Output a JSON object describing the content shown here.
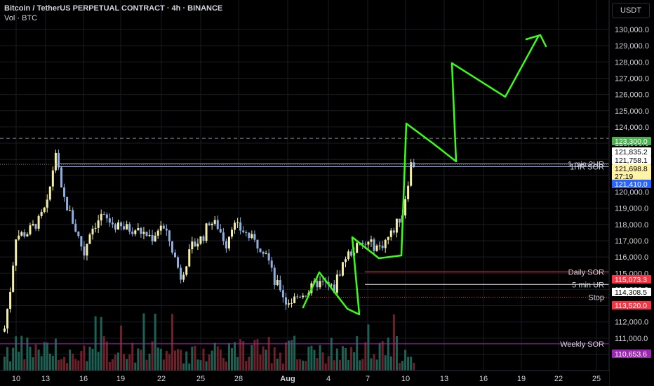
{
  "header": {
    "title": "Bitcoin / TetherUS PERPETUAL CONTRACT · 4h · BINANCE",
    "volume_label": "Vol · BTC",
    "currency_button": "USDT"
  },
  "colors": {
    "background": "#000000",
    "grid": "#1a1c22",
    "up_candle": "#f4eea6",
    "down_candle": "#8fb0de",
    "vol_up": "#1f6b5c",
    "vol_down": "#7a2530",
    "drawing": "#39ff14",
    "level_red": "#f23645",
    "level_purple": "#9c27b0",
    "level_green": "#4caf50",
    "level_blue": "#2962ff"
  },
  "chart_data": {
    "type": "candlestick",
    "y_axis": {
      "range": [
        109600,
        130900
      ],
      "ticks": [
        "110,000.0",
        "111,000.0",
        "112,000.0",
        "113,000.0",
        "114,000.0",
        "115,000.0",
        "116,000.0",
        "117,000.0",
        "118,000.0",
        "119,000.0",
        "120,000.0",
        "121,000.0",
        "122,000.0",
        "123,000.0",
        "124,000.0",
        "125,000.0",
        "126,000.0",
        "127,000.0",
        "128,000.0",
        "129,000.0",
        "130,000.0"
      ]
    },
    "x_axis": {
      "labels": [
        "10",
        "13",
        "16",
        "19",
        "22",
        "25",
        "28",
        "Aug",
        "4",
        "7",
        "10",
        "13",
        "16",
        "19",
        "22",
        "25"
      ]
    },
    "grid": true,
    "price_path": [
      [
        0,
        111600
      ],
      [
        2,
        114000
      ],
      [
        4,
        117300
      ],
      [
        8,
        117500
      ],
      [
        12,
        118200
      ],
      [
        15,
        119200
      ],
      [
        18,
        122500
      ],
      [
        20,
        120000
      ],
      [
        24,
        118200
      ],
      [
        28,
        116200
      ],
      [
        30,
        117600
      ],
      [
        34,
        118500
      ],
      [
        40,
        117800
      ],
      [
        46,
        117700
      ],
      [
        52,
        117200
      ],
      [
        55,
        118000
      ],
      [
        58,
        117000
      ],
      [
        62,
        114800
      ],
      [
        66,
        116600
      ],
      [
        70,
        117300
      ],
      [
        72,
        118200
      ],
      [
        75,
        117900
      ],
      [
        78,
        116800
      ],
      [
        80,
        118000
      ],
      [
        84,
        117600
      ],
      [
        88,
        116900
      ],
      [
        92,
        116400
      ],
      [
        95,
        114400
      ],
      [
        97,
        114100
      ],
      [
        99,
        113200
      ],
      [
        101,
        113300
      ],
      [
        104,
        113700
      ],
      [
        107,
        113900
      ],
      [
        110,
        114400
      ],
      [
        113,
        114300
      ],
      [
        116,
        114000
      ],
      [
        117,
        114700
      ],
      [
        120,
        116000
      ],
      [
        124,
        116600
      ],
      [
        128,
        116800
      ],
      [
        132,
        116600
      ],
      [
        134,
        117000
      ],
      [
        136,
        117400
      ],
      [
        140,
        118700
      ],
      [
        143,
        121700
      ]
    ],
    "levels": [
      {
        "label": "",
        "price": 123300,
        "value_label": "123,300.0",
        "style": "dashed-gray",
        "badge": "green"
      },
      {
        "label": "",
        "price": 121835.2,
        "value_label": "121,835.2",
        "style": "none",
        "badge": "white"
      },
      {
        "label": "",
        "price": 121758.1,
        "value_label": "121,758.1",
        "style": "none",
        "badge": "white"
      },
      {
        "label": "1 min 2UR",
        "price": 121730,
        "value_label": "121,698.8",
        "style": "solid-gray",
        "badge": "yellow"
      },
      {
        "label": "",
        "price": 121700,
        "value_label": "27:19",
        "style": "dotted-gray",
        "badge": "yellow"
      },
      {
        "label": "1HR SOR",
        "price": 121560,
        "value_label": "",
        "style": "solid-lightblue",
        "badge": "none"
      },
      {
        "label": "",
        "price": 121410,
        "value_label": "121,410.0",
        "style": "none",
        "badge": "blue"
      },
      {
        "label": "Daily SOR",
        "price": 115073.3,
        "value_label": "115,073.3",
        "style": "solid-red",
        "badge": "red"
      },
      {
        "label": "5 min UR",
        "price": 114308.5,
        "value_label": "114,308.5",
        "style": "solid-white",
        "badge": "white"
      },
      {
        "label": "Stop",
        "price": 113520,
        "value_label": "113,520.0",
        "style": "dotted-red",
        "badge": "red"
      },
      {
        "label": "Weekly SOR",
        "price": 110653.6,
        "value_label": "110,653.6",
        "style": "solid-purple",
        "badge": "purple"
      }
    ],
    "projection_path": [
      [
        113200,
        0
      ],
      [
        115000,
        0
      ],
      [
        113000,
        1
      ],
      [
        117000,
        2
      ],
      [
        116300,
        3
      ],
      [
        124300,
        4
      ],
      [
        122300,
        5
      ],
      [
        128000,
        6
      ],
      [
        126000,
        7
      ],
      [
        129700,
        8
      ]
    ]
  }
}
